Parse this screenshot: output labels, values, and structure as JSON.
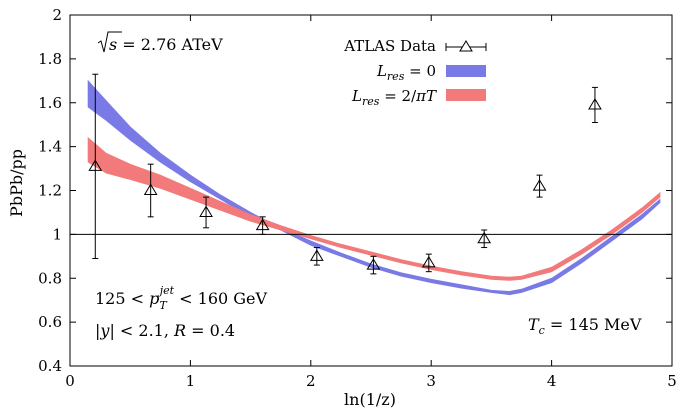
{
  "chart_data": {
    "type": "line",
    "xlabel": "ln(1/z)",
    "ylabel": "PbPb/pp",
    "xlim": [
      0,
      5
    ],
    "ylim": [
      0.4,
      2
    ],
    "xticks": [
      0,
      1,
      2,
      3,
      4,
      5
    ],
    "xtick_labels": [
      "0",
      "1",
      "2",
      "3",
      "4",
      "5"
    ],
    "yticks": [
      0.4,
      0.6,
      0.8,
      1,
      1.2,
      1.4,
      1.6,
      1.8,
      2
    ],
    "ytick_labels": [
      "0.4",
      "0.6",
      "0.8",
      "1",
      "1.2",
      "1.4",
      "1.6",
      "1.8",
      "2"
    ],
    "grid": false,
    "legend_position": "top-right",
    "reference_line_y": 1,
    "annotations": {
      "energy": "√s = 2.76 ATeV",
      "jet_pt": "125 < p_T^jet < 160 GeV",
      "rapidity": "|y| < 2.1, R = 0.4",
      "temperature": "T_c = 145 MeV"
    },
    "series": [
      {
        "name": "ATLAS Data",
        "kind": "points",
        "color": "#000000",
        "x": [
          0.21,
          0.67,
          1.13,
          1.6,
          2.05,
          2.52,
          2.98,
          3.44,
          3.9,
          4.36
        ],
        "y": [
          1.31,
          1.2,
          1.1,
          1.04,
          0.9,
          0.86,
          0.87,
          0.98,
          1.22,
          1.59
        ],
        "err": [
          0.42,
          0.12,
          0.07,
          0.04,
          0.04,
          0.04,
          0.04,
          0.04,
          0.05,
          0.08
        ]
      },
      {
        "name": "L_res = 0",
        "kind": "band",
        "color": "#7a7ae6",
        "x": [
          0.15,
          0.3,
          0.5,
          0.75,
          1.0,
          1.25,
          1.5,
          1.75,
          2.0,
          2.25,
          2.5,
          2.75,
          3.0,
          3.25,
          3.5,
          3.65,
          3.75,
          4.0,
          4.25,
          4.5,
          4.75,
          4.9
        ],
        "lower": [
          1.58,
          1.52,
          1.43,
          1.33,
          1.24,
          1.16,
          1.08,
          1.02,
          0.95,
          0.9,
          0.85,
          0.81,
          0.78,
          0.755,
          0.735,
          0.725,
          0.735,
          0.78,
          0.87,
          0.97,
          1.07,
          1.145
        ],
        "upper": [
          1.7,
          1.61,
          1.49,
          1.37,
          1.27,
          1.18,
          1.1,
          1.03,
          0.97,
          0.915,
          0.865,
          0.825,
          0.795,
          0.77,
          0.745,
          0.74,
          0.75,
          0.8,
          0.89,
          0.99,
          1.09,
          1.16
        ]
      },
      {
        "name": "L_res = 2/πT",
        "kind": "band",
        "color": "#f27a7a",
        "x": [
          0.15,
          0.3,
          0.5,
          0.75,
          1.0,
          1.25,
          1.5,
          1.75,
          2.0,
          2.25,
          2.5,
          2.75,
          3.0,
          3.25,
          3.5,
          3.65,
          3.75,
          4.0,
          4.25,
          4.5,
          4.75,
          4.9
        ],
        "lower": [
          1.33,
          1.28,
          1.25,
          1.21,
          1.16,
          1.11,
          1.06,
          1.02,
          0.98,
          0.94,
          0.905,
          0.87,
          0.84,
          0.815,
          0.795,
          0.79,
          0.795,
          0.83,
          0.91,
          1.0,
          1.1,
          1.17
        ],
        "upper": [
          1.44,
          1.37,
          1.32,
          1.27,
          1.21,
          1.15,
          1.09,
          1.04,
          0.995,
          0.955,
          0.92,
          0.885,
          0.855,
          0.83,
          0.81,
          0.805,
          0.81,
          0.85,
          0.93,
          1.02,
          1.12,
          1.19
        ]
      }
    ]
  }
}
